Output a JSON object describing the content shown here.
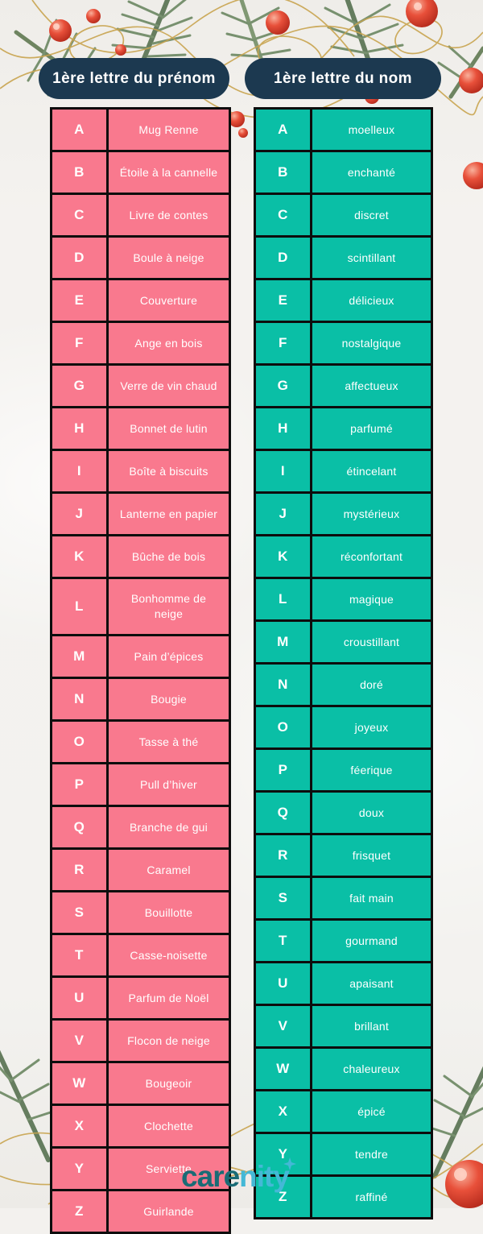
{
  "page": {
    "background": "#f3f1ee"
  },
  "headers": {
    "left": "1ère lettre du prénom",
    "right": "1ère lettre du nom",
    "pill_color": "#1c3950",
    "text_color": "#ffffff"
  },
  "tables": {
    "prenom": {
      "header": "1ère lettre du prénom",
      "cell_color": "#f9798e",
      "border_color": "#0d0d0d",
      "text_color": "#ffffff",
      "rows": [
        {
          "letter": "A",
          "value": "Mug Renne"
        },
        {
          "letter": "B",
          "value": "Étoile à la cannelle"
        },
        {
          "letter": "C",
          "value": "Livre de contes"
        },
        {
          "letter": "D",
          "value": "Boule à neige"
        },
        {
          "letter": "E",
          "value": "Couverture"
        },
        {
          "letter": "F",
          "value": "Ange en bois"
        },
        {
          "letter": "G",
          "value": "Verre de vin chaud"
        },
        {
          "letter": "H",
          "value": "Bonnet de lutin"
        },
        {
          "letter": "I",
          "value": "Boîte à biscuits"
        },
        {
          "letter": "J",
          "value": "Lanterne en papier"
        },
        {
          "letter": "K",
          "value": "Bûche de bois"
        },
        {
          "letter": "L",
          "value": "Bonhomme de\nneige"
        },
        {
          "letter": "M",
          "value": "Pain d’épices"
        },
        {
          "letter": "N",
          "value": "Bougie"
        },
        {
          "letter": "O",
          "value": "Tasse à thé"
        },
        {
          "letter": "P",
          "value": "Pull d’hiver"
        },
        {
          "letter": "Q",
          "value": "Branche de gui"
        },
        {
          "letter": "R",
          "value": "Caramel"
        },
        {
          "letter": "S",
          "value": "Bouillotte"
        },
        {
          "letter": "T",
          "value": "Casse-noisette"
        },
        {
          "letter": "U",
          "value": "Parfum de Noël"
        },
        {
          "letter": "V",
          "value": "Flocon de neige"
        },
        {
          "letter": "W",
          "value": "Bougeoir"
        },
        {
          "letter": "X",
          "value": "Clochette"
        },
        {
          "letter": "Y",
          "value": "Serviette"
        },
        {
          "letter": "Z",
          "value": "Guirlande"
        }
      ]
    },
    "nom": {
      "header": "1ère lettre du nom",
      "cell_color": "#0abfa6",
      "border_color": "#0d0d0d",
      "text_color": "#ffffff",
      "rows": [
        {
          "letter": "A",
          "value": "moelleux"
        },
        {
          "letter": "B",
          "value": "enchanté"
        },
        {
          "letter": "C",
          "value": "discret"
        },
        {
          "letter": "D",
          "value": "scintillant"
        },
        {
          "letter": "E",
          "value": "délicieux"
        },
        {
          "letter": "F",
          "value": "nostalgique"
        },
        {
          "letter": "G",
          "value": "affectueux"
        },
        {
          "letter": "H",
          "value": "parfumé"
        },
        {
          "letter": "I",
          "value": "étincelant"
        },
        {
          "letter": "J",
          "value": "mystérieux"
        },
        {
          "letter": "K",
          "value": "réconfortant"
        },
        {
          "letter": "L",
          "value": "magique"
        },
        {
          "letter": "M",
          "value": "croustillant"
        },
        {
          "letter": "N",
          "value": "doré"
        },
        {
          "letter": "O",
          "value": "joyeux"
        },
        {
          "letter": "P",
          "value": "féerique"
        },
        {
          "letter": "Q",
          "value": "doux"
        },
        {
          "letter": "R",
          "value": "frisquet"
        },
        {
          "letter": "S",
          "value": "fait main"
        },
        {
          "letter": "T",
          "value": "gourmand"
        },
        {
          "letter": "U",
          "value": "apaisant"
        },
        {
          "letter": "V",
          "value": "brillant"
        },
        {
          "letter": "W",
          "value": "chaleureux"
        },
        {
          "letter": "X",
          "value": "épicé"
        },
        {
          "letter": "Y",
          "value": "tendre"
        },
        {
          "letter": "Z",
          "value": "raffiné"
        }
      ]
    }
  },
  "footer": {
    "logo_care": "care",
    "logo_nity": "nity",
    "logo_care_color": "#1a6b75",
    "logo_nity_color": "#44b8d6"
  },
  "decor_colors": {
    "berry": "#d8402c",
    "gold_wire": "#c9a44f",
    "fir_green": "#64815a"
  }
}
